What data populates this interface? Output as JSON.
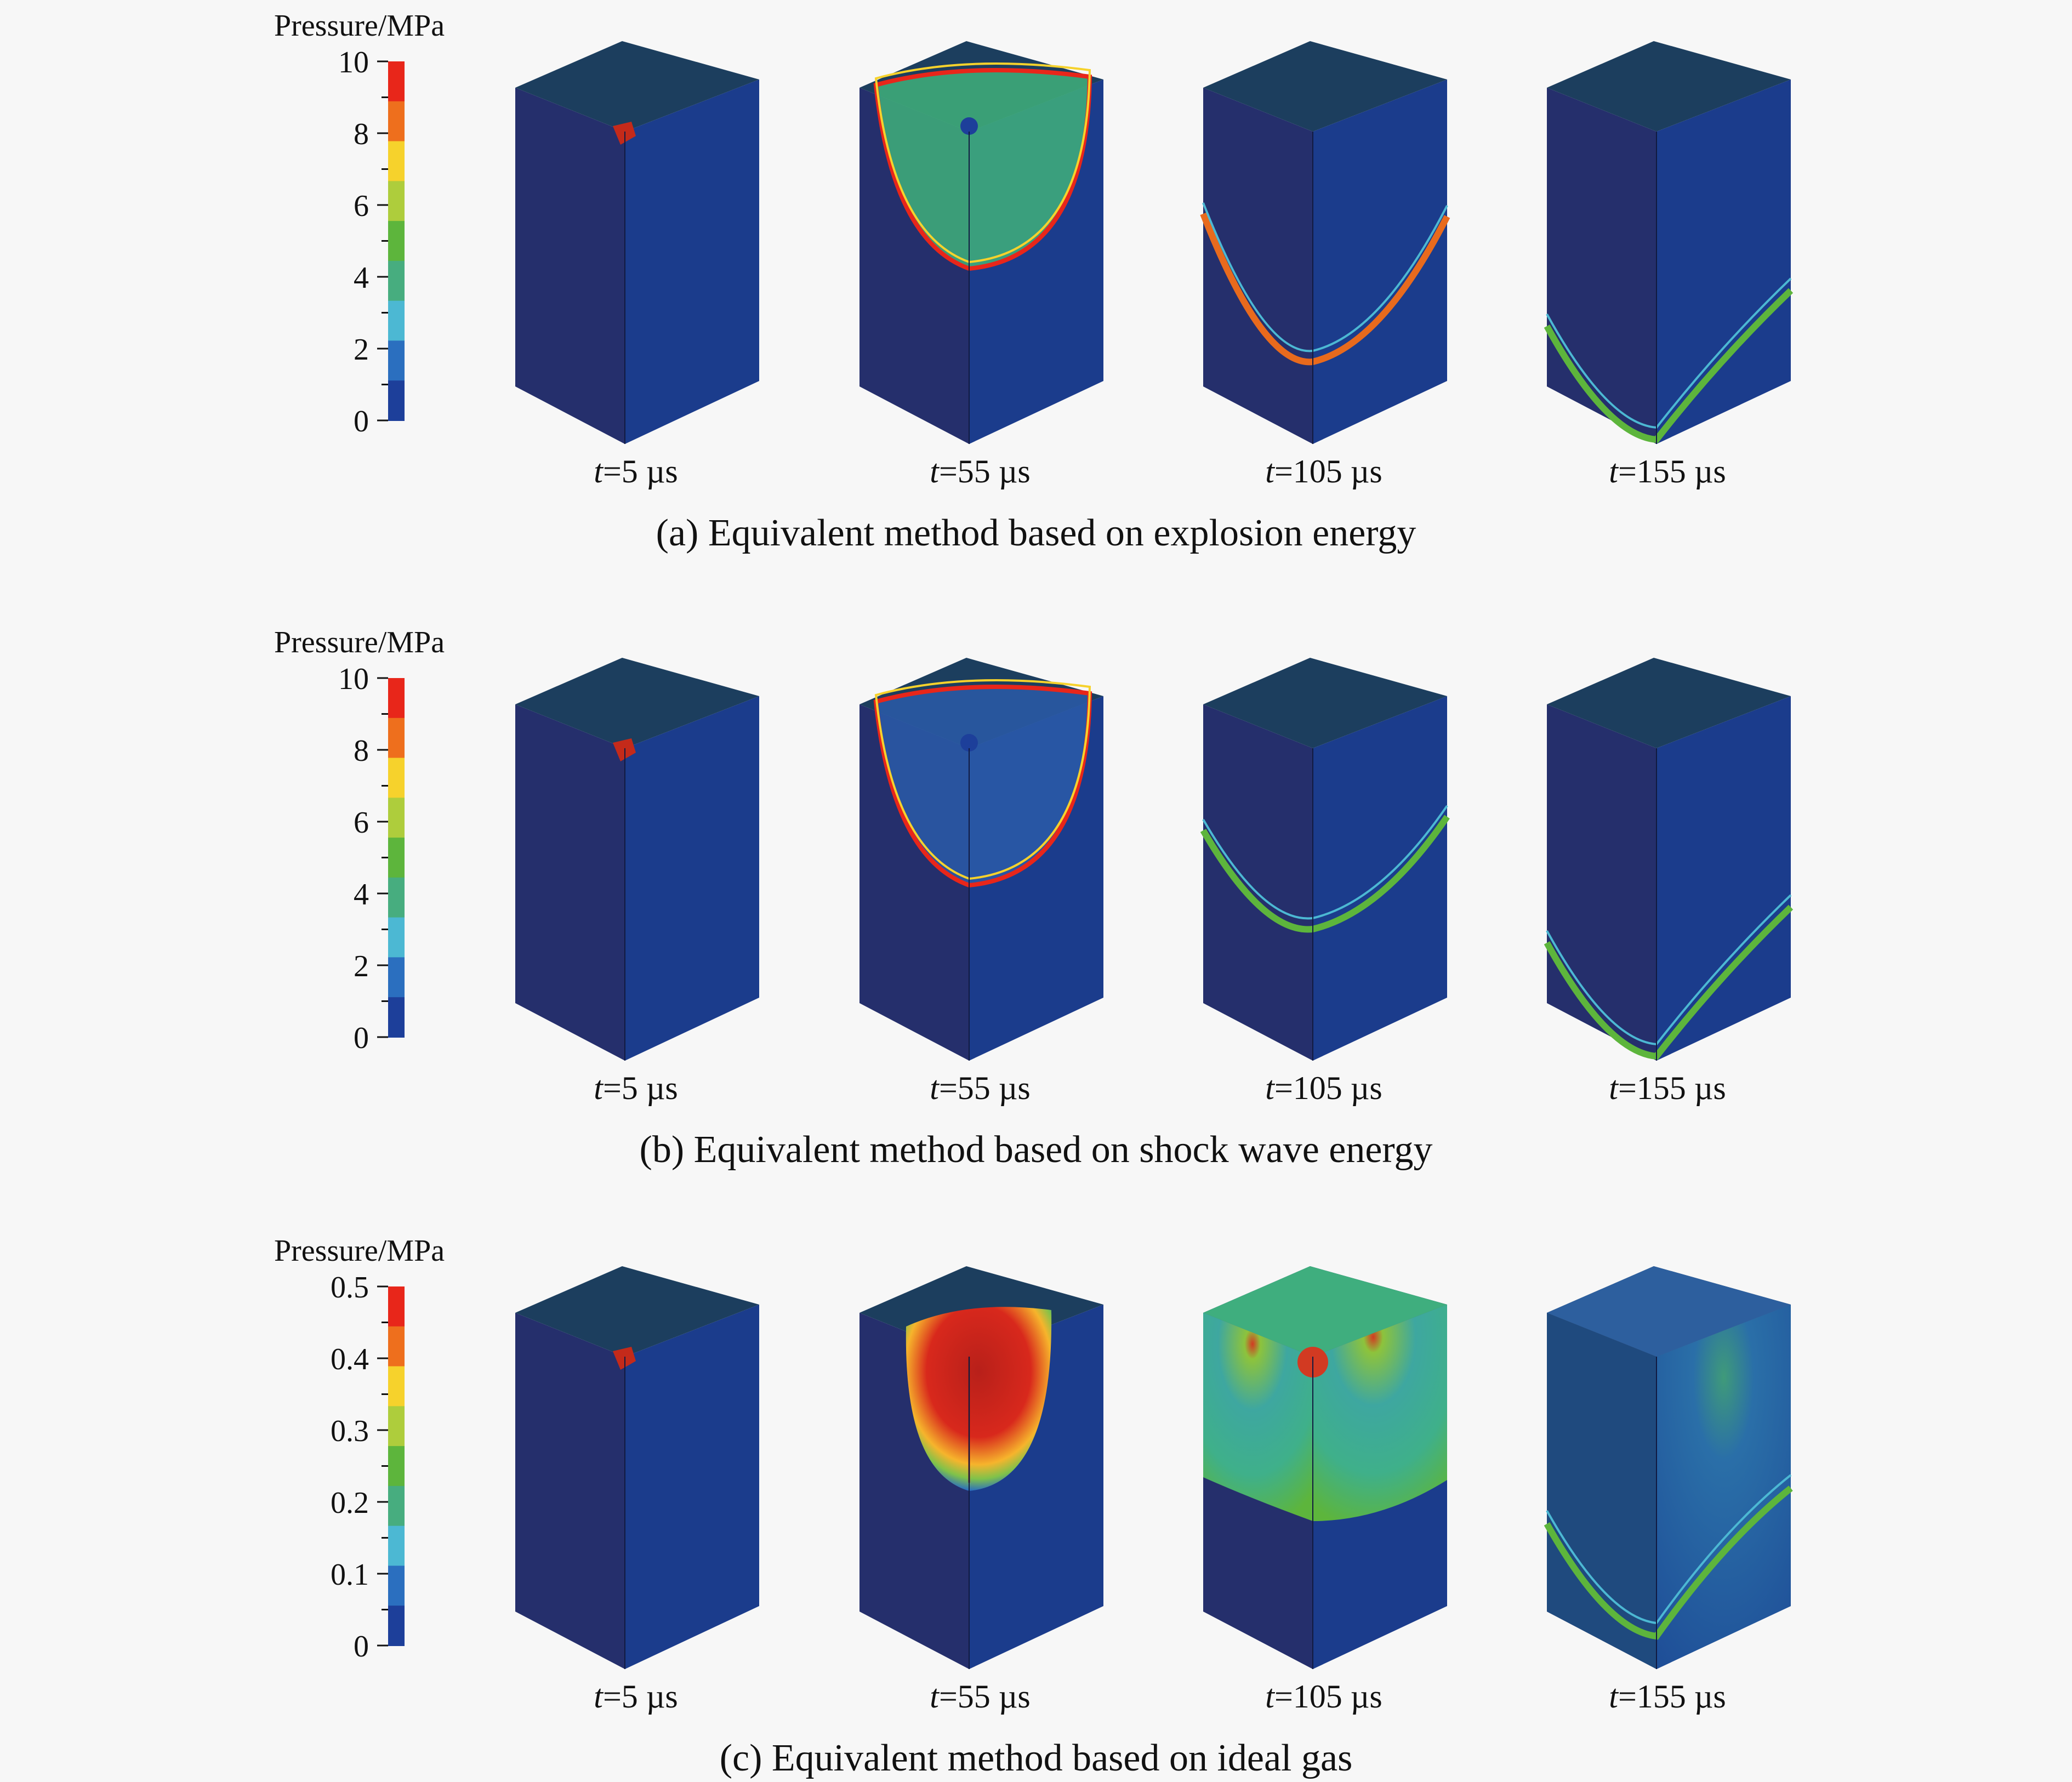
{
  "panels": [
    {
      "caption": "(a) Equivalent method based on explosion energy",
      "colorbar": {
        "title": "Pressure/MPa",
        "ticks": [
          "10",
          "8",
          "6",
          "4",
          "2",
          "0"
        ]
      },
      "snapshots": [
        {
          "t_symbol": "t",
          "t_rest": "=5 µs",
          "state": "charge"
        },
        {
          "t_symbol": "t",
          "t_rest": "=55 µs",
          "state": "wavefront-near"
        },
        {
          "t_symbol": "t",
          "t_rest": "=105 µs",
          "state": "wavefront-mid"
        },
        {
          "t_symbol": "t",
          "t_rest": "=155 µs",
          "state": "wavefront-bottom"
        }
      ]
    },
    {
      "caption": "(b) Equivalent method based on shock wave energy",
      "colorbar": {
        "title": "Pressure/MPa",
        "ticks": [
          "10",
          "8",
          "6",
          "4",
          "2",
          "0"
        ]
      },
      "snapshots": [
        {
          "t_symbol": "t",
          "t_rest": "=5 µs",
          "state": "charge"
        },
        {
          "t_symbol": "t",
          "t_rest": "=55 µs",
          "state": "wavefront-near"
        },
        {
          "t_symbol": "t",
          "t_rest": "=105 µs",
          "state": "wavefront-mid"
        },
        {
          "t_symbol": "t",
          "t_rest": "=155 µs",
          "state": "wavefront-bottom"
        }
      ]
    },
    {
      "caption": "(c) Equivalent method based on ideal gas",
      "colorbar": {
        "title": "Pressure/MPa",
        "ticks": [
          "0.5",
          "0.4",
          "0.3",
          "0.2",
          "0.1",
          "0"
        ]
      },
      "snapshots": [
        {
          "t_symbol": "t",
          "t_rest": "=5 µs",
          "state": "charge"
        },
        {
          "t_symbol": "t",
          "t_rest": "=55 µs",
          "state": "high-pressure-sector"
        },
        {
          "t_symbol": "t",
          "t_rest": "=105 µs",
          "state": "filled-green"
        },
        {
          "t_symbol": "t",
          "t_rest": "=155 µs",
          "state": "diffuse-blue"
        }
      ]
    }
  ],
  "colors": {
    "colormap": [
      "#e8261a",
      "#ee6f1d",
      "#f6d22c",
      "#aecd3c",
      "#5db53c",
      "#47ad7f",
      "#4cb8d3",
      "#2b6fbf",
      "#1d3f9a"
    ],
    "cube_left": "#252f6c",
    "cube_right": "#1b3c8c",
    "cube_top": "#1c3e5e",
    "charge": "#c42a1a"
  }
}
